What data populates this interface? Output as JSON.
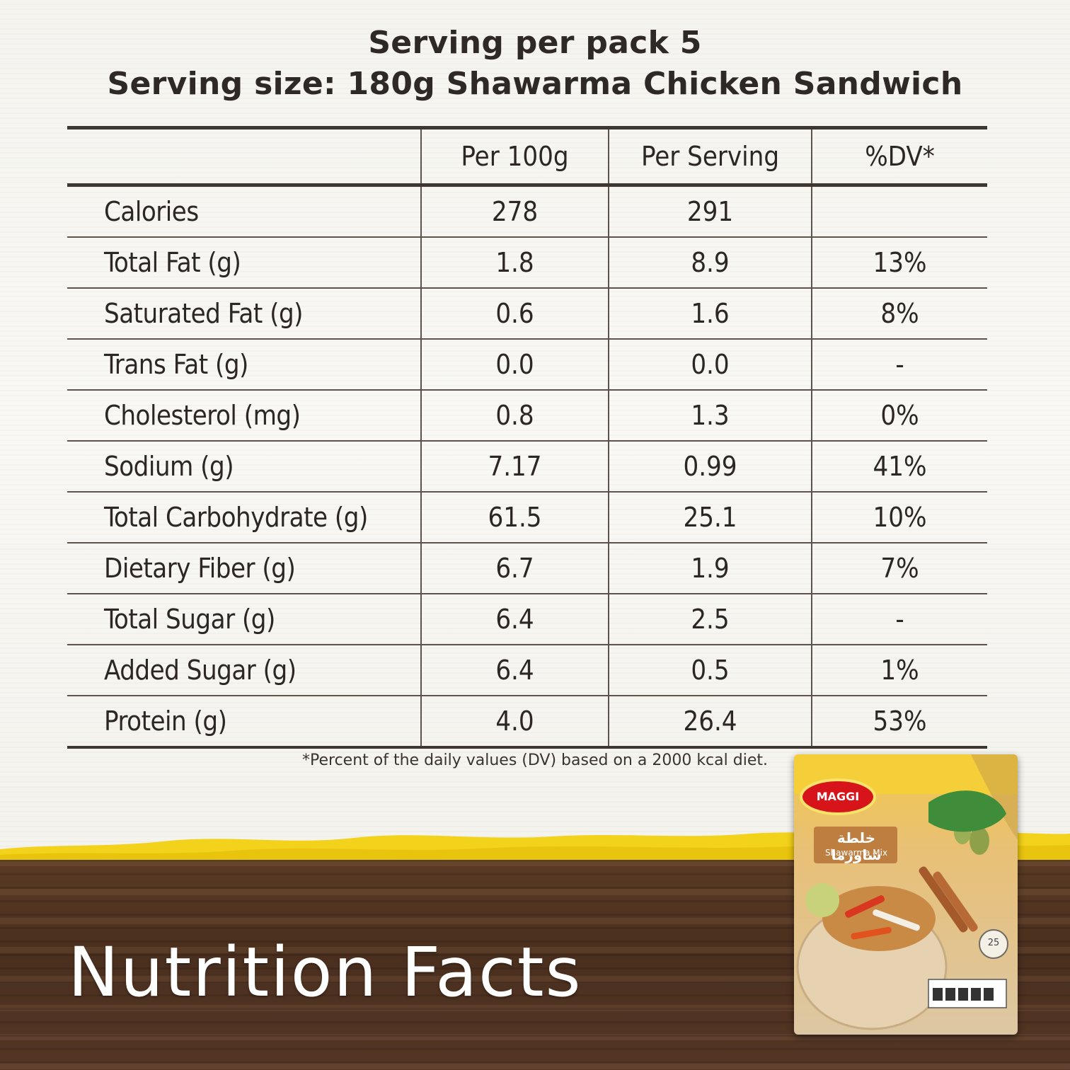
{
  "header": {
    "line1": "Serving per pack 5",
    "line2": "Serving size: 180g Shawarma Chicken Sandwich"
  },
  "table": {
    "columns": [
      "",
      "Per 100g",
      "Per Serving",
      "%DV*"
    ],
    "rows": [
      {
        "name": "Calories",
        "per100g": "278",
        "perServing": "291",
        "dv": ""
      },
      {
        "name": "Total Fat (g)",
        "per100g": "1.8",
        "perServing": "8.9",
        "dv": "13%"
      },
      {
        "name": "Saturated Fat (g)",
        "per100g": "0.6",
        "perServing": "1.6",
        "dv": "8%"
      },
      {
        "name": "Trans Fat (g)",
        "per100g": "0.0",
        "perServing": "0.0",
        "dv": "-"
      },
      {
        "name": "Cholesterol (mg)",
        "per100g": "0.8",
        "perServing": "1.3",
        "dv": "0%"
      },
      {
        "name": "Sodium (g)",
        "per100g": "7.17",
        "perServing": "0.99",
        "dv": "41%"
      },
      {
        "name": "Total Carbohydrate (g)",
        "per100g": "61.5",
        "perServing": "25.1",
        "dv": "10%"
      },
      {
        "name": "Dietary Fiber (g)",
        "per100g": "6.7",
        "perServing": "1.9",
        "dv": "7%"
      },
      {
        "name": "Total Sugar (g)",
        "per100g": "6.4",
        "perServing": "2.5",
        "dv": "-"
      },
      {
        "name": "Added Sugar (g)",
        "per100g": "6.4",
        "perServing": "0.5",
        "dv": "1%"
      },
      {
        "name": "Protein (g)",
        "per100g": "4.0",
        "perServing": "26.4",
        "dv": "53%"
      }
    ]
  },
  "footnote": "*Percent of the daily values (DV) based on a 2000 kcal diet.",
  "title": "Nutrition Facts",
  "product": {
    "brand": "MAGGI",
    "name_ar": "خلطة شاورما",
    "name_en": "Shawarma Mix",
    "badge": "25"
  },
  "colors": {
    "yellow": "#f2d21a",
    "wood": "#4a2f1e",
    "brand_red": "#d7141a"
  }
}
